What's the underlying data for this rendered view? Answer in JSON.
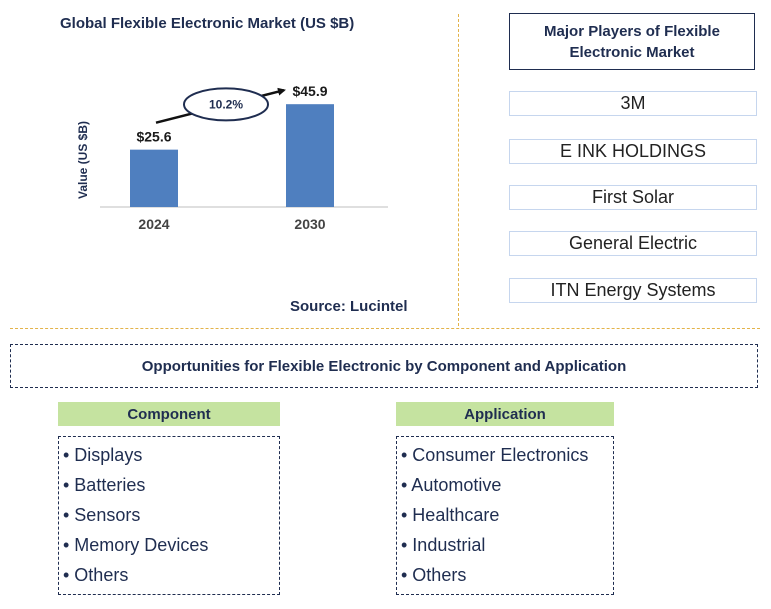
{
  "chart_data": {
    "type": "bar",
    "title": "Global Flexible Electronic Market (US $B)",
    "xlabel": "",
    "ylabel": "Value (US $B)",
    "categories": [
      "2024",
      "2030"
    ],
    "values": [
      25.6,
      45.9
    ],
    "value_labels": [
      "$25.6",
      "$45.9"
    ],
    "ylim": [
      0,
      50
    ],
    "bar_color": "#4f7fbf",
    "growth_annotation": "10.2%",
    "source": "Source: Lucintel"
  },
  "players": {
    "title": "Major Players of Flexible Electronic Market",
    "items": [
      "3M",
      "E INK HOLDINGS",
      "First Solar",
      "General Electric",
      "ITN Energy Systems"
    ]
  },
  "opportunities": {
    "title": "Opportunities for Flexible Electronic by Component and Application",
    "component": {
      "header": "Component",
      "items": [
        "• Displays",
        "• Batteries",
        "• Sensors",
        "• Memory Devices",
        "• Others"
      ]
    },
    "application": {
      "header": "Application",
      "items": [
        "• Consumer Electronics",
        "• Automotive",
        "• Healthcare",
        "• Industrial",
        "• Others"
      ]
    }
  },
  "colors": {
    "navy": "#1f2d50",
    "bar": "#4f7fbf",
    "category_header_bg": "#c5e3a0",
    "divider": "#e3b34a"
  }
}
